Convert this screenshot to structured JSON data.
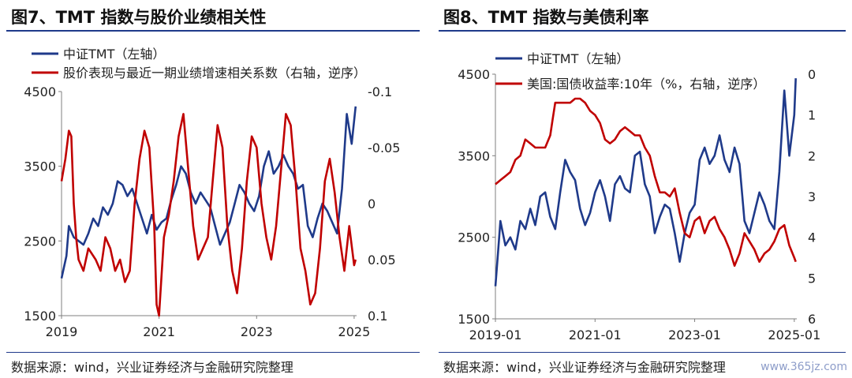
{
  "left": {
    "title": "图7、TMT 指数与股价业绩相关性",
    "source": "数据来源：wind，兴业证券经济与金融研究院整理",
    "chart_data": {
      "type": "line",
      "x_start": 2019.0,
      "x_end": 2025.05,
      "x_ticks": [
        2019,
        2021,
        2023,
        2025
      ],
      "x_tick_labels": [
        "2019",
        "2021",
        "2023",
        "2025"
      ],
      "y_left_lim": [
        1500,
        4500
      ],
      "y_left_ticks": [
        1500,
        2500,
        3500,
        4500
      ],
      "y_right_lim": [
        -0.1,
        0.1
      ],
      "y_right_inverted": true,
      "y_right_ticks": [
        -0.1,
        -0.05,
        0,
        0.05,
        0.1
      ],
      "y_right_tick_labels": [
        "-0.1",
        "-0.05",
        "0",
        "0.05",
        "0.1"
      ],
      "series": [
        {
          "name": "中证TMT（左轴）",
          "axis": "left",
          "color": "#1f3a8a",
          "x": [
            2019.0,
            2019.1,
            2019.15,
            2019.25,
            2019.35,
            2019.45,
            2019.55,
            2019.65,
            2019.75,
            2019.85,
            2019.95,
            2020.05,
            2020.15,
            2020.25,
            2020.35,
            2020.45,
            2020.55,
            2020.65,
            2020.75,
            2020.85,
            2020.95,
            2021.05,
            2021.15,
            2021.25,
            2021.35,
            2021.45,
            2021.55,
            2021.65,
            2021.75,
            2021.85,
            2021.95,
            2022.05,
            2022.15,
            2022.25,
            2022.35,
            2022.45,
            2022.55,
            2022.65,
            2022.75,
            2022.85,
            2022.95,
            2023.05,
            2023.15,
            2023.25,
            2023.35,
            2023.45,
            2023.55,
            2023.65,
            2023.75,
            2023.85,
            2023.95,
            2024.05,
            2024.15,
            2024.25,
            2024.35,
            2024.45,
            2024.55,
            2024.65,
            2024.75,
            2024.85,
            2024.95,
            2025.03
          ],
          "y": [
            2000,
            2300,
            2700,
            2550,
            2500,
            2450,
            2600,
            2800,
            2700,
            2950,
            2850,
            3000,
            3300,
            3250,
            3100,
            3200,
            3000,
            2800,
            2600,
            2850,
            2650,
            2750,
            2800,
            3050,
            3250,
            3500,
            3400,
            3150,
            3000,
            3150,
            3050,
            2950,
            2700,
            2450,
            2600,
            2750,
            3000,
            3250,
            3150,
            3000,
            2900,
            3100,
            3500,
            3700,
            3400,
            3500,
            3650,
            3500,
            3400,
            3200,
            3250,
            2700,
            2550,
            2800,
            3000,
            2900,
            2750,
            2600,
            3200,
            4200,
            3800,
            4300
          ]
        },
        {
          "name": "股价表现与最近一期业绩增速相关系数（右轴，逆序）",
          "axis": "right",
          "color": "#c00000",
          "x": [
            2019.0,
            2019.08,
            2019.15,
            2019.2,
            2019.25,
            2019.3,
            2019.35,
            2019.45,
            2019.55,
            2019.7,
            2019.8,
            2019.9,
            2020.0,
            2020.1,
            2020.2,
            2020.3,
            2020.4,
            2020.5,
            2020.6,
            2020.7,
            2020.8,
            2020.9,
            2020.95,
            2021.0,
            2021.1,
            2021.2,
            2021.3,
            2021.4,
            2021.5,
            2021.6,
            2021.7,
            2021.8,
            2021.9,
            2022.0,
            2022.1,
            2022.2,
            2022.3,
            2022.4,
            2022.5,
            2022.6,
            2022.7,
            2022.8,
            2022.9,
            2023.0,
            2023.1,
            2023.2,
            2023.3,
            2023.4,
            2023.5,
            2023.6,
            2023.7,
            2023.8,
            2023.9,
            2024.0,
            2024.1,
            2024.2,
            2024.3,
            2024.4,
            2024.5,
            2024.6,
            2024.7,
            2024.8,
            2024.9,
            2025.0,
            2025.03
          ],
          "y": [
            -0.02,
            -0.04,
            -0.065,
            -0.06,
            -0.0,
            0.03,
            0.05,
            0.06,
            0.04,
            0.05,
            0.06,
            0.03,
            0.04,
            0.06,
            0.05,
            0.07,
            0.06,
            0.0,
            -0.04,
            -0.065,
            -0.05,
            0.02,
            0.09,
            0.1,
            0.03,
            0.01,
            -0.02,
            -0.06,
            -0.08,
            -0.03,
            0.02,
            0.05,
            0.04,
            0.03,
            -0.02,
            -0.07,
            -0.05,
            0.02,
            0.06,
            0.08,
            0.04,
            -0.02,
            -0.06,
            -0.05,
            0.0,
            0.03,
            0.05,
            0.02,
            -0.03,
            -0.08,
            -0.07,
            -0.02,
            0.04,
            0.06,
            0.09,
            0.08,
            0.04,
            -0.02,
            -0.04,
            -0.01,
            0.03,
            0.06,
            0.02,
            0.055,
            0.05
          ]
        }
      ]
    }
  },
  "right": {
    "title": "图8、TMT 指数与美债利率",
    "source": "数据来源：wind，兴业证券经济与金融研究院整理",
    "watermark": "www.365jz.com",
    "chart_data": {
      "type": "line",
      "x_start": 2019.0,
      "x_end": 2025.05,
      "x_ticks": [
        2019.0,
        2021.0,
        2023.0,
        2025.0
      ],
      "x_tick_labels": [
        "2019-01",
        "2021-01",
        "2023-01",
        "2025-01"
      ],
      "y_left_lim": [
        1500,
        4500
      ],
      "y_left_ticks": [
        1500,
        2500,
        3500,
        4500
      ],
      "y_right_lim": [
        0,
        6
      ],
      "y_right_inverted": true,
      "y_right_ticks": [
        0,
        1,
        2,
        3,
        4,
        5,
        6
      ],
      "y_right_tick_labels": [
        "0",
        "1",
        "2",
        "3",
        "4",
        "5",
        "6"
      ],
      "series": [
        {
          "name": "中证TMT（左轴）",
          "axis": "left",
          "color": "#1f3a8a",
          "x": [
            2019.0,
            2019.05,
            2019.1,
            2019.2,
            2019.3,
            2019.4,
            2019.5,
            2019.6,
            2019.7,
            2019.8,
            2019.9,
            2020.0,
            2020.1,
            2020.2,
            2020.3,
            2020.4,
            2020.5,
            2020.6,
            2020.7,
            2020.8,
            2020.9,
            2021.0,
            2021.1,
            2021.2,
            2021.3,
            2021.4,
            2021.5,
            2021.6,
            2021.7,
            2021.8,
            2021.9,
            2022.0,
            2022.1,
            2022.2,
            2022.3,
            2022.4,
            2022.5,
            2022.6,
            2022.7,
            2022.8,
            2022.9,
            2023.0,
            2023.1,
            2023.2,
            2023.3,
            2023.4,
            2023.5,
            2023.6,
            2023.7,
            2023.8,
            2023.9,
            2024.0,
            2024.1,
            2024.2,
            2024.3,
            2024.4,
            2024.5,
            2024.6,
            2024.7,
            2024.8,
            2024.9,
            2025.0,
            2025.03
          ],
          "y": [
            1900,
            2300,
            2700,
            2400,
            2500,
            2350,
            2700,
            2600,
            2850,
            2650,
            3000,
            3050,
            2750,
            2600,
            3050,
            3450,
            3300,
            3200,
            2850,
            2650,
            2800,
            3050,
            3200,
            3000,
            2700,
            3150,
            3250,
            3100,
            3050,
            3500,
            3550,
            3150,
            3000,
            2550,
            2750,
            2900,
            2850,
            2550,
            2200,
            2550,
            2800,
            2900,
            3450,
            3600,
            3400,
            3500,
            3750,
            3450,
            3300,
            3600,
            3400,
            2700,
            2550,
            2800,
            3050,
            2900,
            2700,
            2600,
            3300,
            4300,
            3500,
            4000,
            4450
          ]
        },
        {
          "name": "美国:国债收益率:10年（%，右轴，逆序）",
          "axis": "right",
          "color": "#c00000",
          "x": [
            2019.0,
            2019.1,
            2019.2,
            2019.3,
            2019.4,
            2019.5,
            2019.6,
            2019.7,
            2019.8,
            2019.9,
            2020.0,
            2020.1,
            2020.15,
            2020.2,
            2020.3,
            2020.4,
            2020.5,
            2020.6,
            2020.7,
            2020.8,
            2020.9,
            2021.0,
            2021.1,
            2021.2,
            2021.3,
            2021.4,
            2021.5,
            2021.6,
            2021.7,
            2021.8,
            2021.9,
            2022.0,
            2022.1,
            2022.2,
            2022.3,
            2022.4,
            2022.5,
            2022.6,
            2022.7,
            2022.8,
            2022.9,
            2023.0,
            2023.1,
            2023.2,
            2023.3,
            2023.4,
            2023.5,
            2023.6,
            2023.7,
            2023.8,
            2023.9,
            2024.0,
            2024.1,
            2024.2,
            2024.3,
            2024.4,
            2024.5,
            2024.6,
            2024.7,
            2024.8,
            2024.9,
            2025.0,
            2025.03
          ],
          "y": [
            2.7,
            2.6,
            2.5,
            2.4,
            2.1,
            2.0,
            1.6,
            1.7,
            1.8,
            1.8,
            1.8,
            1.5,
            1.1,
            0.7,
            0.7,
            0.7,
            0.7,
            0.6,
            0.6,
            0.7,
            0.9,
            1.0,
            1.2,
            1.6,
            1.7,
            1.6,
            1.4,
            1.3,
            1.4,
            1.5,
            1.5,
            1.8,
            2.0,
            2.5,
            2.9,
            2.9,
            3.0,
            2.8,
            3.4,
            3.9,
            4.0,
            3.6,
            3.5,
            3.9,
            3.6,
            3.5,
            3.8,
            4.0,
            4.3,
            4.7,
            4.4,
            3.9,
            4.1,
            4.3,
            4.6,
            4.4,
            4.3,
            4.1,
            3.8,
            3.7,
            4.2,
            4.5,
            4.6
          ]
        }
      ]
    }
  }
}
